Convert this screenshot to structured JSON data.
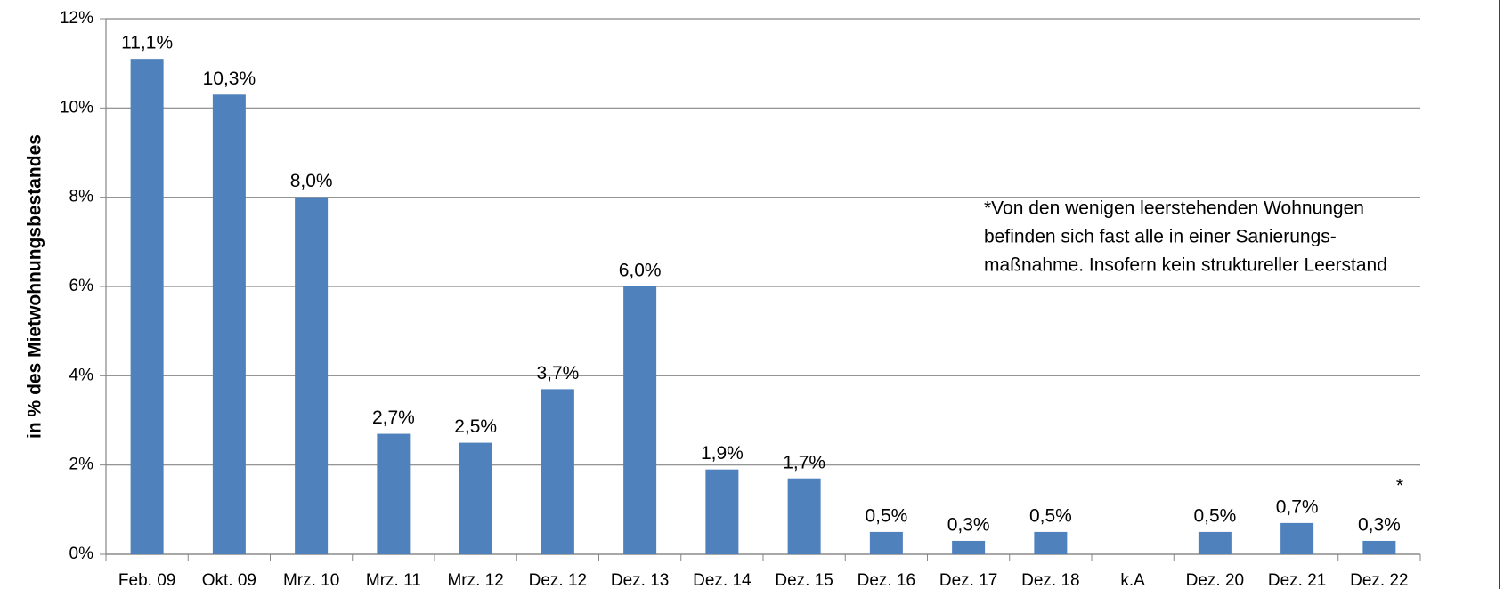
{
  "chart_data": {
    "type": "bar",
    "y_label": "in %  des Mietwohnungsbestandes",
    "categories": [
      "Feb. 09",
      "Okt. 09",
      "Mrz. 10",
      "Mrz. 11",
      "Mrz. 12",
      "Dez. 12",
      "Dez. 13",
      "Dez. 14",
      "Dez. 15",
      "Dez. 16",
      "Dez. 17",
      "Dez. 18",
      "k.A",
      "Dez. 20",
      "Dez. 21",
      "Dez. 22"
    ],
    "values": [
      11.1,
      10.3,
      8.0,
      2.7,
      2.5,
      3.7,
      6.0,
      1.9,
      1.7,
      0.5,
      0.3,
      0.5,
      null,
      0.5,
      0.7,
      0.3
    ],
    "value_labels": [
      "11,1%",
      "10,3%",
      "8,0%",
      "2,7%",
      "2,5%",
      "3,7%",
      "6,0%",
      "1,9%",
      "1,7%",
      "0,5%",
      "0,3%",
      "0,5%",
      null,
      "0,5%",
      "0,7%",
      "0,3%"
    ],
    "color": "#4f81bd",
    "ylim": [
      0,
      12
    ],
    "yticks": [
      {
        "value": 0,
        "label": "0%"
      },
      {
        "value": 2,
        "label": "2%"
      },
      {
        "value": 4,
        "label": "4%"
      },
      {
        "value": 6,
        "label": "6%"
      },
      {
        "value": 8,
        "label": "8%"
      },
      {
        "value": 10,
        "label": "10%"
      },
      {
        "value": 12,
        "label": "12%"
      }
    ],
    "grid": true,
    "annotations": [
      "*Von den wenigen leerstehenden Wohnungen",
      "befinden sich fast alle in einer Sanierungs-",
      "maßnahme. Insofern kein struktureller Leerstand",
      "*"
    ]
  }
}
